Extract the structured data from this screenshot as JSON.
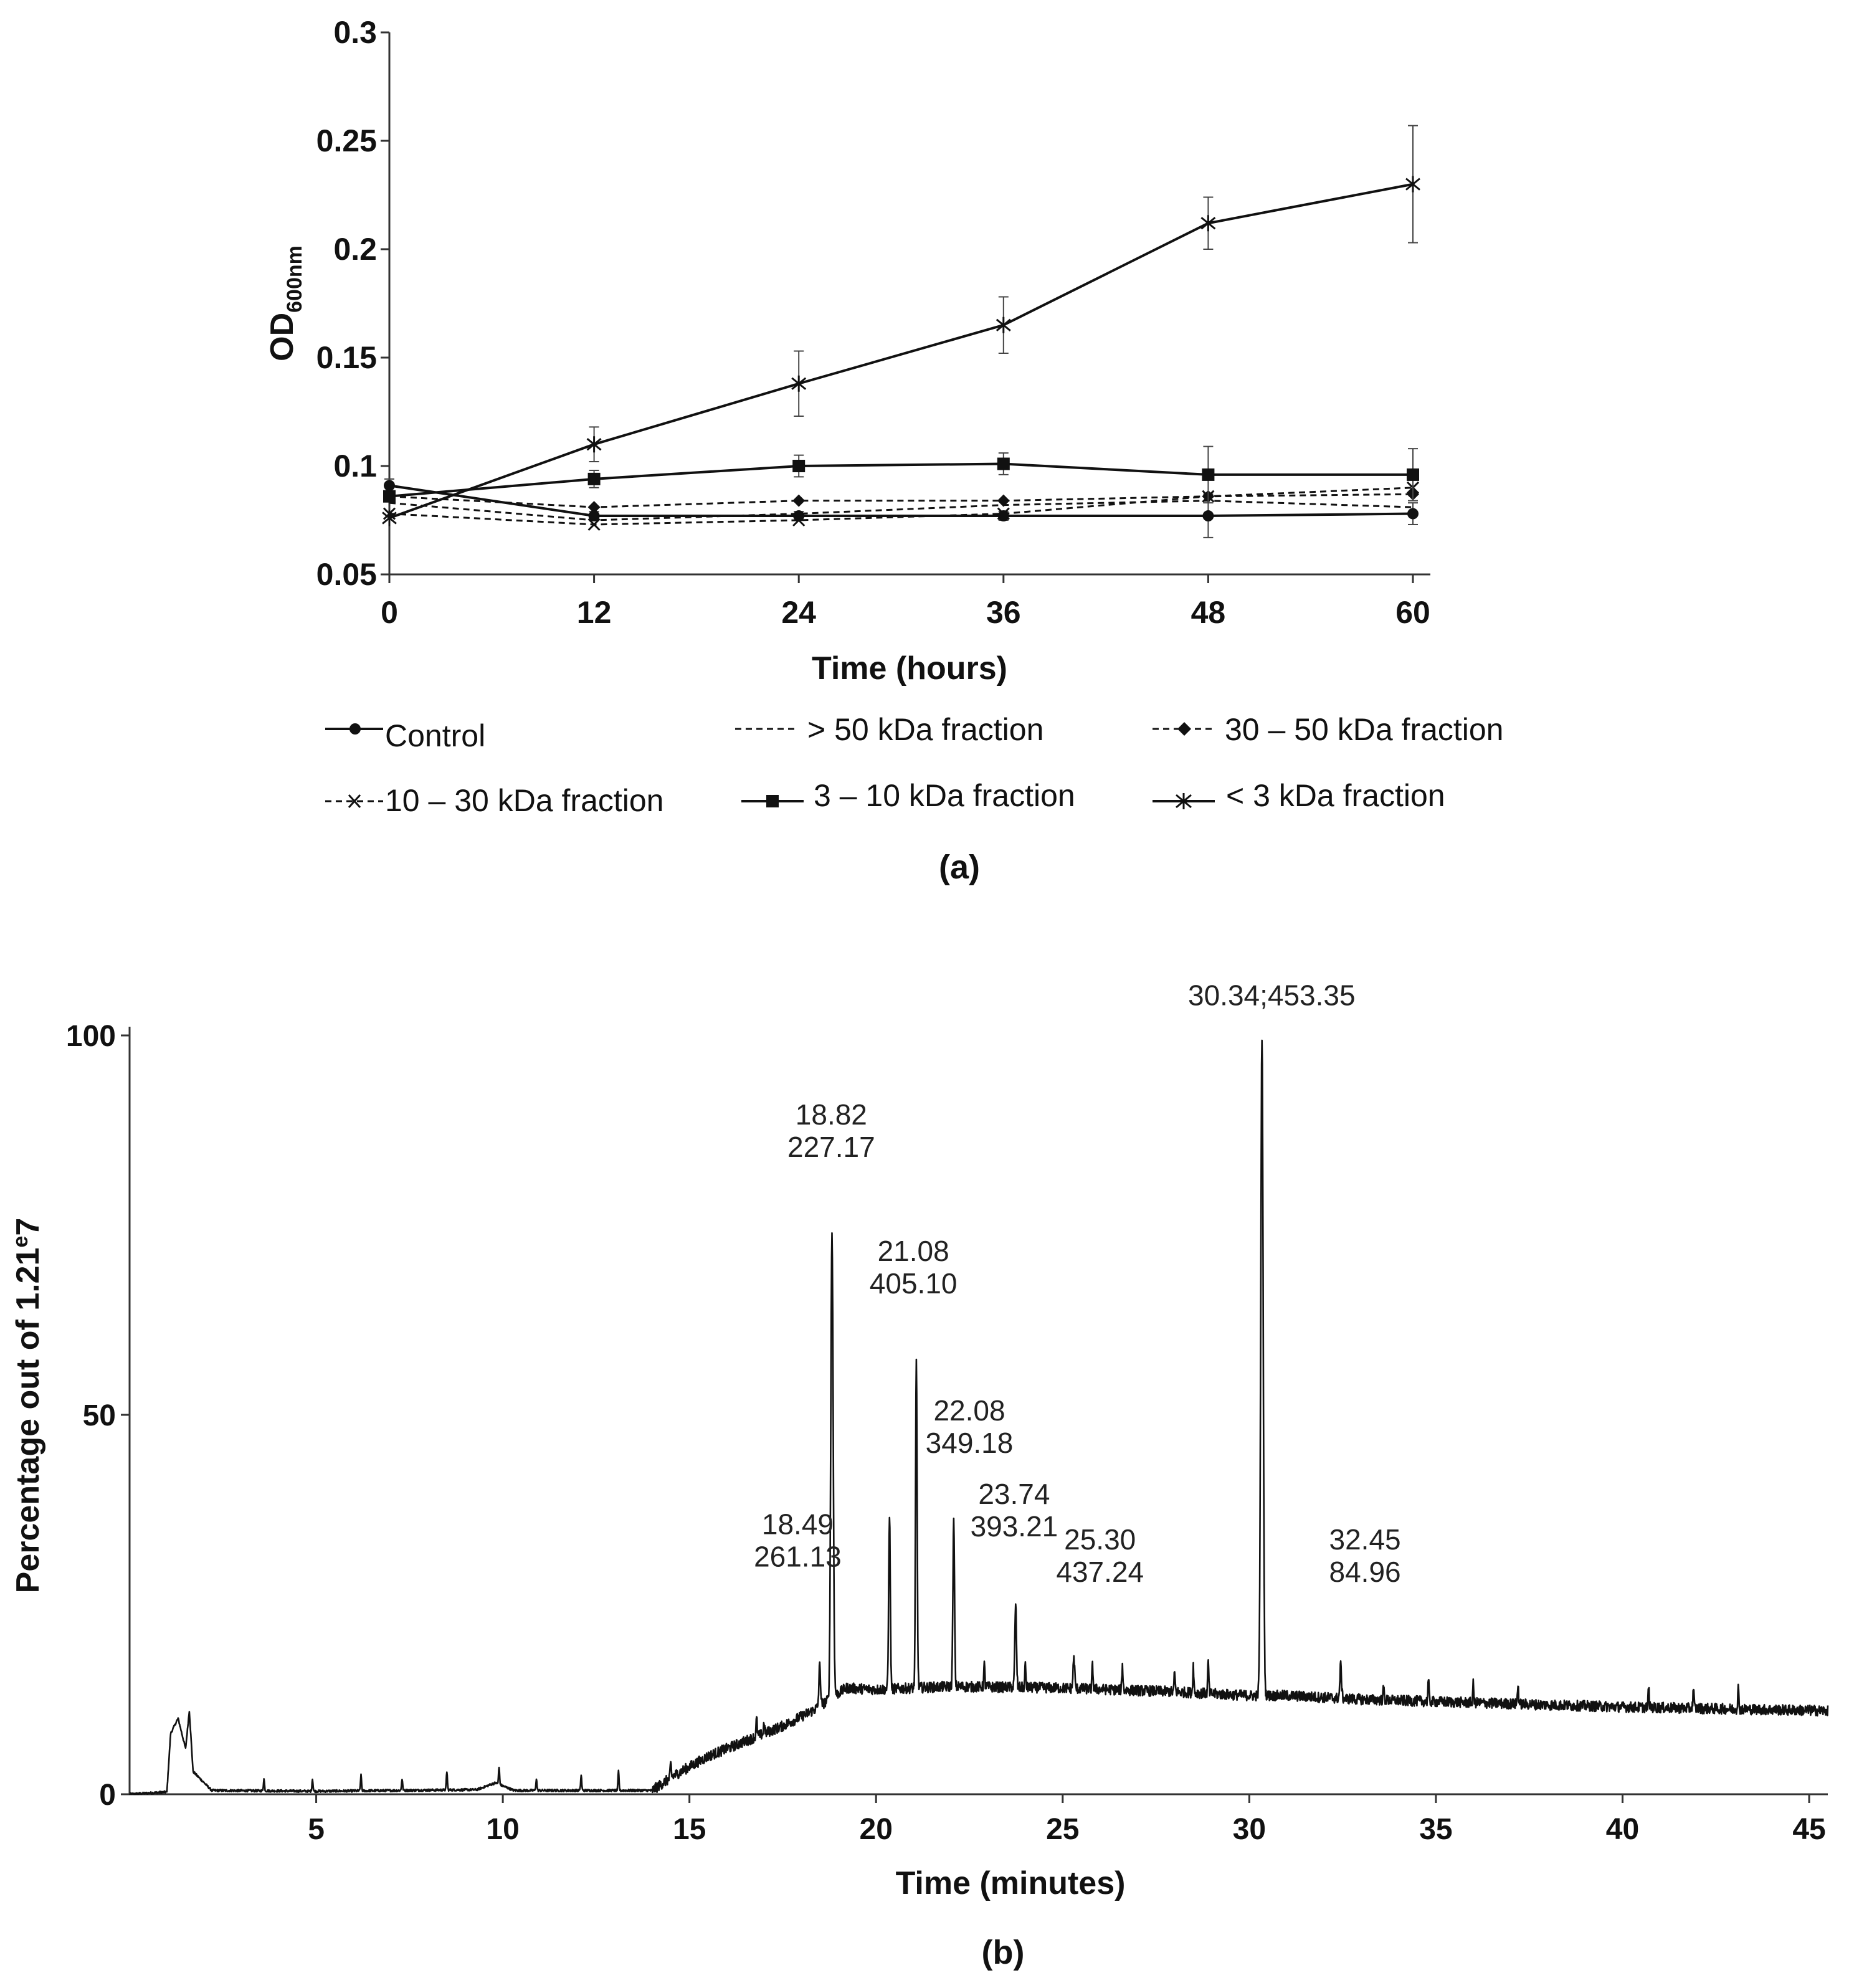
{
  "chart_data": [
    {
      "type": "line",
      "panel_label": "(a)",
      "ylabel_main": "OD",
      "ylabel_sub": "600nm",
      "xlabel": "Time (hours)",
      "x": [
        0,
        12,
        24,
        36,
        48,
        60
      ],
      "xlim": [
        0,
        60
      ],
      "ylim": [
        0.05,
        0.3
      ],
      "yticks": [
        0.05,
        0.1,
        0.15,
        0.2,
        0.25,
        0.3
      ],
      "ytick_labels": [
        "0.05",
        "0.1",
        "0.15",
        "0.2",
        "0.25",
        "0.3"
      ],
      "xtick_labels": [
        "0",
        "12",
        "24",
        "36",
        "48",
        "60"
      ],
      "legend_placement": "bottom",
      "series": [
        {
          "name": "Control",
          "style": "solid",
          "marker": "circle",
          "values": [
            0.091,
            0.077,
            0.077,
            0.077,
            0.077,
            0.078
          ],
          "errors": [
            0.003,
            0.002,
            0.002,
            0.002,
            0.01,
            0.005
          ]
        },
        {
          "name": "> 50 kDa fraction",
          "style": "dashed",
          "marker": "none",
          "values": [
            0.083,
            0.075,
            0.078,
            0.082,
            0.084,
            0.081
          ],
          "errors": [
            0,
            0,
            0,
            0,
            0,
            0
          ]
        },
        {
          "name": "30 – 50  kDa fraction",
          "style": "dashed",
          "marker": "diamond",
          "values": [
            0.086,
            0.081,
            0.084,
            0.084,
            0.086,
            0.087
          ],
          "errors": [
            0,
            0,
            0,
            0,
            0,
            0
          ]
        },
        {
          "name": "10 – 30 kDa fraction",
          "style": "dashed",
          "marker": "x",
          "values": [
            0.078,
            0.073,
            0.075,
            0.078,
            0.086,
            0.09
          ],
          "errors": [
            0,
            0,
            0,
            0,
            0,
            0
          ]
        },
        {
          "name": "3 – 10 kDa fraction",
          "style": "solid",
          "marker": "square",
          "values": [
            0.086,
            0.094,
            0.1,
            0.101,
            0.096,
            0.096
          ],
          "errors": [
            0,
            0.004,
            0.005,
            0.005,
            0.013,
            0.012
          ]
        },
        {
          "name": "< 3 kDa fraction",
          "style": "solid",
          "marker": "star",
          "values": [
            0.076,
            0.11,
            0.138,
            0.165,
            0.212,
            0.23
          ],
          "errors": [
            0,
            0.008,
            0.015,
            0.013,
            0.012,
            0.027
          ]
        }
      ]
    },
    {
      "type": "line",
      "panel_label": "(b)",
      "ylabel": "Percentage out of 1.21e7",
      "ylabel_prefix": "Percentage out of 1.21",
      "ylabel_sup": "e",
      "ylabel_suffix": "7",
      "xlabel": "Time (minutes)",
      "xlim": [
        0,
        45.5
      ],
      "ylim": [
        0,
        100
      ],
      "yticks": [
        0,
        50,
        100
      ],
      "ytick_labels": [
        "0",
        "50",
        "100"
      ],
      "xticks": [
        5,
        10,
        15,
        20,
        25,
        30,
        35,
        40,
        45
      ],
      "xtick_labels": [
        "5",
        "10",
        "15",
        "20",
        "25",
        "30",
        "35",
        "40",
        "45"
      ],
      "baseline_points": [
        [
          0,
          0
        ],
        [
          1,
          0.3
        ],
        [
          1.1,
          8
        ],
        [
          1.3,
          10
        ],
        [
          1.5,
          6
        ],
        [
          1.6,
          11
        ],
        [
          1.7,
          3
        ],
        [
          2.2,
          0.5
        ],
        [
          5,
          0.4
        ],
        [
          9.3,
          0.6
        ],
        [
          9.8,
          1.5
        ],
        [
          10.3,
          0.5
        ],
        [
          14,
          0.5
        ],
        [
          14.6,
          2.5
        ],
        [
          15.5,
          5
        ],
        [
          16.5,
          7
        ],
        [
          17.5,
          9
        ],
        [
          18.3,
          11
        ],
        [
          19.2,
          14
        ],
        [
          20,
          13.8
        ],
        [
          22,
          14.2
        ],
        [
          25,
          14
        ],
        [
          28,
          13.5
        ],
        [
          30,
          13
        ],
        [
          31,
          13
        ],
        [
          33,
          12.5
        ],
        [
          35,
          12.2
        ],
        [
          40,
          11.5
        ],
        [
          45.5,
          11
        ]
      ],
      "noise_amplitude": 0.7,
      "small_spikes": [
        [
          3.6,
          2
        ],
        [
          4.9,
          2
        ],
        [
          6.2,
          2.5
        ],
        [
          7.3,
          2
        ],
        [
          8.5,
          3
        ],
        [
          9.9,
          3.5
        ],
        [
          10.9,
          2
        ],
        [
          12.1,
          2.5
        ],
        [
          13.1,
          3
        ],
        [
          14.5,
          4
        ],
        [
          16.8,
          10
        ],
        [
          17.0,
          9.5
        ],
        [
          22.9,
          17
        ],
        [
          24.0,
          17
        ],
        [
          25.8,
          17
        ],
        [
          26.6,
          17
        ],
        [
          28.0,
          16
        ],
        [
          28.5,
          17
        ],
        [
          28.9,
          17.5
        ],
        [
          33.6,
          14
        ],
        [
          34.8,
          15
        ],
        [
          36.0,
          14.5
        ],
        [
          37.2,
          14.5
        ],
        [
          40.7,
          14
        ],
        [
          41.9,
          14
        ],
        [
          43.1,
          14
        ]
      ],
      "peaks": [
        {
          "rt": 18.49,
          "height": 17,
          "label_rt": "18.49",
          "label_mz": "261.13",
          "label_anchor_rt": 17.9,
          "label_anchor_pct": 30
        },
        {
          "rt": 18.82,
          "height": 74,
          "label_rt": "18.82",
          "label_mz": "227.17",
          "label_anchor_rt": 18.8,
          "label_anchor_pct": 84
        },
        {
          "rt": 20.36,
          "height": 37,
          "label_rt": "",
          "label_mz": ""
        },
        {
          "rt": 21.08,
          "height": 57,
          "label_rt": "21.08",
          "label_mz": "405.10",
          "label_anchor_rt": 21.0,
          "label_anchor_pct": 66
        },
        {
          "rt": 22.08,
          "height": 36,
          "label_rt": "22.08",
          "label_mz": "349.18",
          "label_anchor_rt": 22.5,
          "label_anchor_pct": 45
        },
        {
          "rt": 23.74,
          "height": 25,
          "label_rt": "23.74",
          "label_mz": "393.21",
          "label_anchor_rt": 23.7,
          "label_anchor_pct": 34
        },
        {
          "rt": 25.3,
          "height": 18,
          "label_rt": "25.30",
          "label_mz": "437.24",
          "label_anchor_rt": 26.0,
          "label_anchor_pct": 28
        },
        {
          "rt": 30.34,
          "height": 100,
          "label_rt": "30.34;453.35",
          "label_mz": "",
          "label_anchor_rt": 30.6,
          "label_anchor_pct": 104
        },
        {
          "rt": 32.45,
          "height": 17,
          "label_rt": "32.45",
          "label_mz": "84.96",
          "label_anchor_rt": 33.1,
          "label_anchor_pct": 28
        }
      ]
    }
  ]
}
